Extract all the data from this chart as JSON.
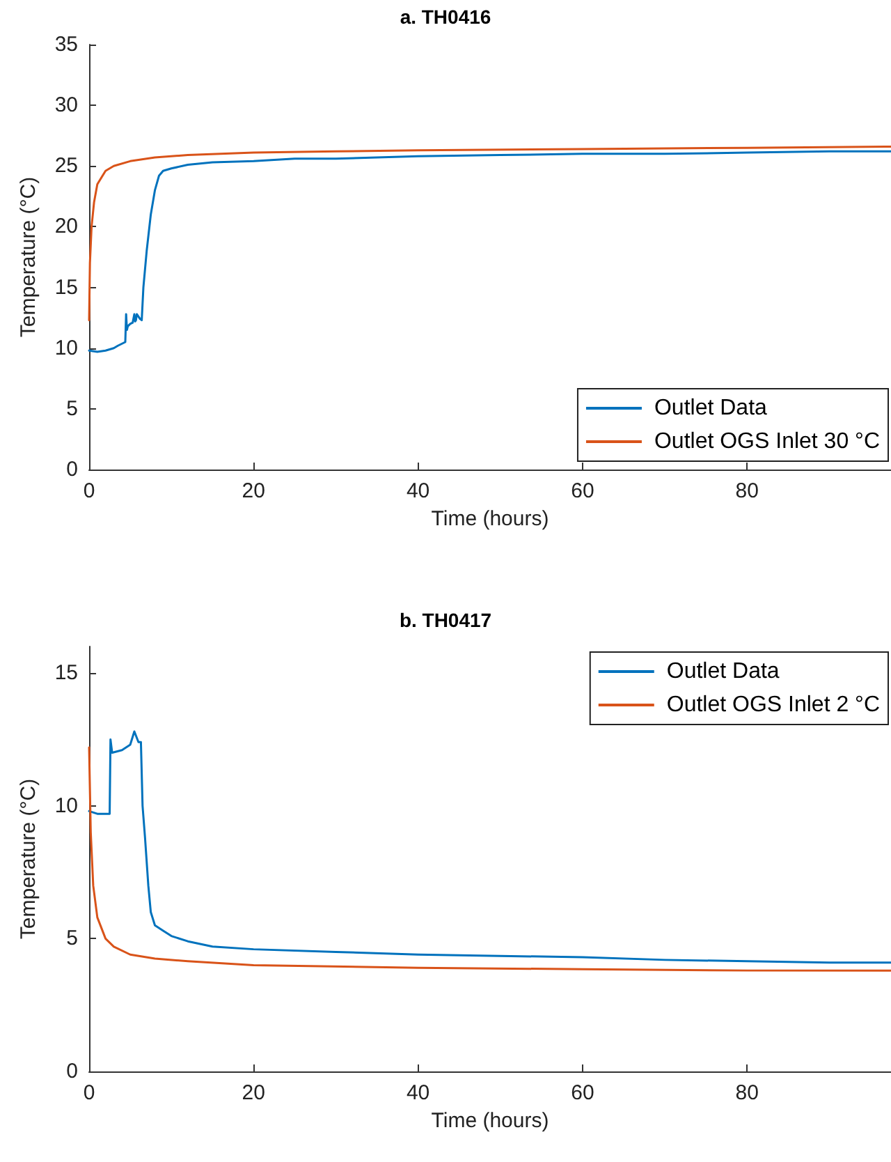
{
  "chart_data": [
    {
      "type": "line",
      "title": "a. TH0416",
      "xlabel": "Time (hours)",
      "ylabel": "Temperature (°C)",
      "xlim": [
        0,
        97.5
      ],
      "xticks": [
        0,
        20,
        40,
        60,
        80
      ],
      "ylim": [
        0,
        35
      ],
      "yticks": [
        0,
        5,
        10,
        15,
        20,
        25,
        30,
        35
      ],
      "grid": false,
      "legend": "bottom right",
      "marker": "none",
      "line_style": "solid",
      "series": [
        {
          "name": "Outlet Data",
          "color": "#0072bd",
          "x": [
            0,
            1,
            2,
            3,
            3.5,
            4.4,
            4.5,
            4.6,
            4.7,
            5,
            5.3,
            5.5,
            5.6,
            5.7,
            5.8,
            6.2,
            6.4,
            6.6,
            7,
            7.5,
            8,
            8.5,
            9,
            10,
            12,
            15,
            20,
            25,
            30,
            40,
            50,
            60,
            70,
            80,
            90,
            97.5
          ],
          "values": [
            9.8,
            9.7,
            9.8,
            10,
            10.2,
            10.5,
            12.8,
            11.5,
            11.8,
            12,
            12.1,
            12.8,
            12.2,
            12.3,
            12.8,
            12.4,
            12.3,
            15,
            18,
            21,
            23,
            24.2,
            24.6,
            24.8,
            25.1,
            25.3,
            25.4,
            25.6,
            25.6,
            25.8,
            25.9,
            26,
            26,
            26.1,
            26.2,
            26.2
          ]
        },
        {
          "name": "Outlet OGS Inlet 30 °C",
          "color": "#d95319",
          "x": [
            0,
            0.1,
            0.3,
            0.6,
            1,
            2,
            3,
            5,
            8,
            12,
            20,
            30,
            40,
            60,
            80,
            97.5
          ],
          "values": [
            12.3,
            17,
            20,
            22,
            23.5,
            24.6,
            25,
            25.4,
            25.7,
            25.9,
            26.1,
            26.2,
            26.3,
            26.4,
            26.5,
            26.6
          ]
        }
      ]
    },
    {
      "type": "line",
      "title": "b. TH0417",
      "xlabel": "Time (hours)",
      "ylabel": "Temperature (°C)",
      "xlim": [
        0,
        97.5
      ],
      "xticks": [
        0,
        20,
        40,
        60,
        80
      ],
      "ylim": [
        0,
        16
      ],
      "yticks": [
        0,
        5,
        10,
        15
      ],
      "grid": false,
      "legend": "top right",
      "marker": "none",
      "line_style": "solid",
      "series": [
        {
          "name": "Outlet Data",
          "color": "#0072bd",
          "x": [
            0,
            1,
            2.5,
            2.6,
            2.8,
            4,
            5,
            5.5,
            6,
            6.3,
            6.5,
            6.8,
            7.2,
            7.5,
            8,
            9,
            10,
            12,
            15,
            20,
            30,
            40,
            50,
            60,
            70,
            80,
            90,
            97.5
          ],
          "values": [
            9.8,
            9.7,
            9.7,
            12.5,
            12,
            12.1,
            12.3,
            12.8,
            12.4,
            12.4,
            10,
            8.8,
            7,
            6,
            5.5,
            5.3,
            5.1,
            4.9,
            4.7,
            4.6,
            4.5,
            4.4,
            4.35,
            4.3,
            4.2,
            4.15,
            4.1,
            4.1
          ]
        },
        {
          "name": "Outlet OGS Inlet 2 °C",
          "color": "#d95319",
          "x": [
            0,
            0.2,
            0.5,
            1,
            2,
            3,
            5,
            8,
            12,
            20,
            40,
            60,
            80,
            97.5
          ],
          "values": [
            12.2,
            9,
            7,
            5.8,
            5,
            4.7,
            4.4,
            4.25,
            4.15,
            4,
            3.9,
            3.85,
            3.8,
            3.8
          ]
        }
      ]
    }
  ]
}
